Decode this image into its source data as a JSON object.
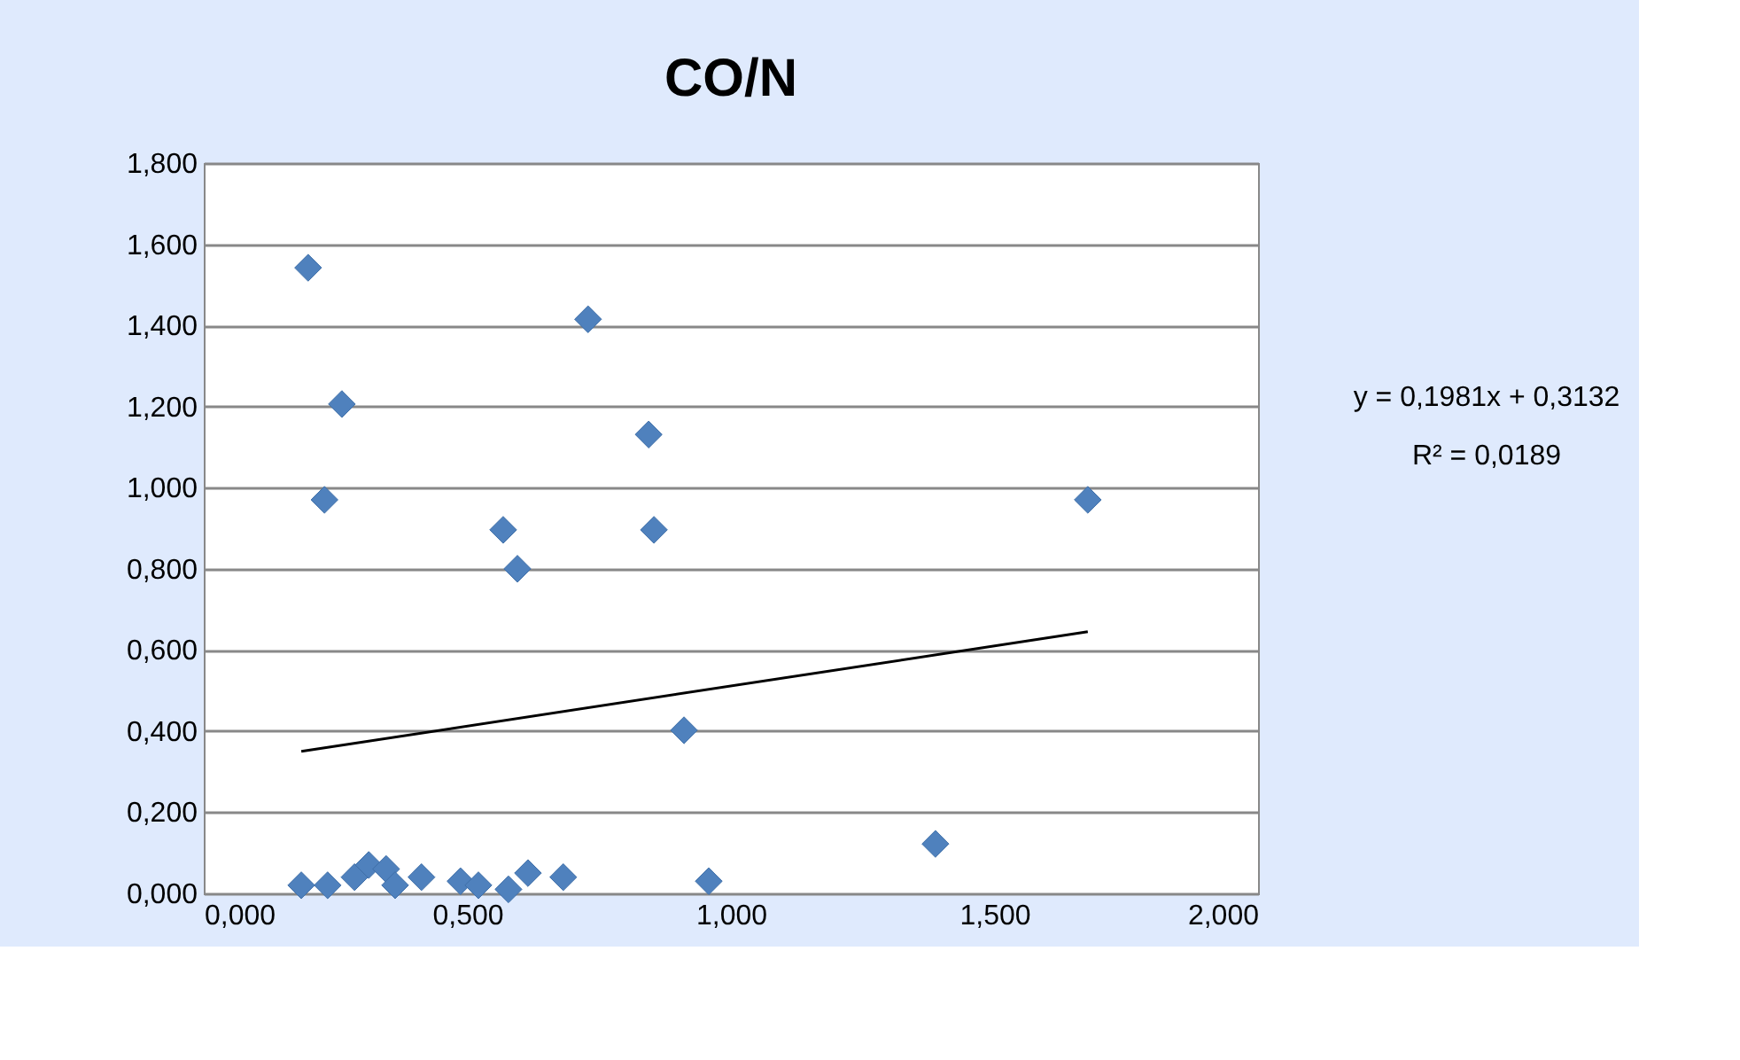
{
  "chart_data": {
    "type": "scatter",
    "title": "CO/N",
    "series": [
      {
        "color": "#4f81bd",
        "marker": "diamond",
        "x": [
          0.185,
          0.235,
          0.286,
          0.313,
          0.346,
          0.363,
          0.413,
          0.487,
          0.521,
          0.578,
          0.615,
          0.682,
          0.958,
          1.388,
          0.198,
          0.729,
          0.262,
          0.844,
          0.229,
          0.568,
          0.854,
          0.595,
          0.911,
          1.677
        ],
        "values": [
          0.02,
          0.02,
          0.04,
          0.07,
          0.06,
          0.02,
          0.04,
          0.03,
          0.02,
          0.01,
          0.05,
          0.04,
          0.03,
          0.122,
          1.542,
          1.415,
          1.206,
          1.131,
          0.97,
          0.896,
          0.896,
          0.8,
          0.402,
          0.97
        ]
      },
      {
        "type": "line",
        "marker": "none",
        "color": "#000000",
        "x": [
          0.185,
          1.677
        ],
        "values": [
          0.35,
          0.645
        ]
      }
    ],
    "xlim": [
      0,
      2
    ],
    "ylim": [
      0,
      1.8
    ],
    "xticks": [
      {
        "value": 0,
        "label": "0,000"
      },
      {
        "value": 0.5,
        "label": "0,500"
      },
      {
        "value": 1,
        "label": "1,000"
      },
      {
        "value": 1.5,
        "label": "1,500"
      },
      {
        "value": 2,
        "label": "2,000"
      }
    ],
    "yticks": [
      {
        "value": 0,
        "label": "0,000"
      },
      {
        "value": 0.2,
        "label": "0,200"
      },
      {
        "value": 0.4,
        "label": "0,400"
      },
      {
        "value": 0.6,
        "label": "0,600"
      },
      {
        "value": 0.8,
        "label": "0,800"
      },
      {
        "value": 1,
        "label": "1,000"
      },
      {
        "value": 1.2,
        "label": "1,200"
      },
      {
        "value": 1.4,
        "label": "1,400"
      },
      {
        "value": 1.6,
        "label": "1,600"
      },
      {
        "value": 1.8,
        "label": "1,800"
      }
    ],
    "annotations": [
      "y = 0,1981x + 0,3132",
      "R² = 0,0189"
    ],
    "grid": "y"
  }
}
